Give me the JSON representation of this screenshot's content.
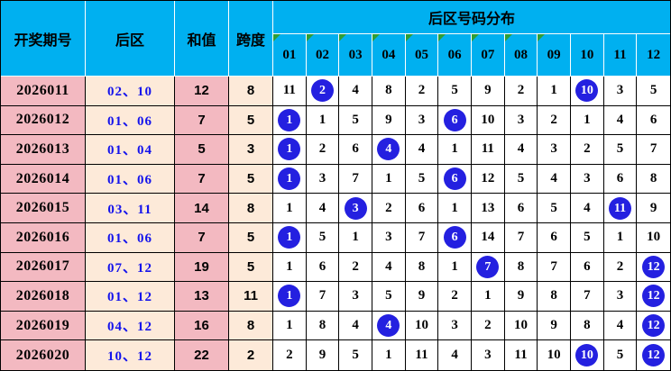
{
  "chart_data": {
    "type": "table",
    "title": "后区号码分布",
    "header": {
      "period": "开奖期号",
      "rear": "后区",
      "sum": "和值",
      "span": "跨度",
      "dist_title": "后区号码分布",
      "dist_columns": [
        "01",
        "02",
        "03",
        "04",
        "05",
        "06",
        "07",
        "08",
        "09",
        "10",
        "11",
        "12"
      ],
      "marked_columns": [
        "01",
        "02",
        "03",
        "04",
        "05",
        "06",
        "07",
        "08",
        "09"
      ]
    },
    "rows": [
      {
        "period": "2026011",
        "rear": "02、10",
        "sum": "12",
        "span": "8",
        "values": [
          11,
          2,
          4,
          8,
          2,
          5,
          9,
          2,
          1,
          10,
          3,
          5
        ],
        "hit_numbers": [
          2,
          10
        ]
      },
      {
        "period": "2026012",
        "rear": "01、06",
        "sum": "7",
        "span": "5",
        "values": [
          1,
          1,
          5,
          9,
          3,
          6,
          10,
          3,
          2,
          1,
          4,
          6
        ],
        "hit_numbers": [
          1,
          6
        ]
      },
      {
        "period": "2026013",
        "rear": "01、04",
        "sum": "5",
        "span": "3",
        "values": [
          1,
          2,
          6,
          4,
          4,
          1,
          11,
          4,
          3,
          2,
          5,
          7
        ],
        "hit_numbers": [
          1,
          4
        ]
      },
      {
        "period": "2026014",
        "rear": "01、06",
        "sum": "7",
        "span": "5",
        "values": [
          1,
          3,
          7,
          1,
          5,
          6,
          12,
          5,
          4,
          3,
          6,
          8
        ],
        "hit_numbers": [
          1,
          6
        ]
      },
      {
        "period": "2026015",
        "rear": "03、11",
        "sum": "14",
        "span": "8",
        "values": [
          1,
          4,
          3,
          2,
          6,
          1,
          13,
          6,
          5,
          4,
          11,
          9
        ],
        "hit_numbers": [
          3,
          11
        ]
      },
      {
        "period": "2026016",
        "rear": "01、06",
        "sum": "7",
        "span": "5",
        "values": [
          1,
          5,
          1,
          3,
          7,
          6,
          14,
          7,
          6,
          5,
          1,
          10
        ],
        "hit_numbers": [
          1,
          6
        ]
      },
      {
        "period": "2026017",
        "rear": "07、12",
        "sum": "19",
        "span": "5",
        "values": [
          1,
          6,
          2,
          4,
          8,
          1,
          7,
          8,
          7,
          6,
          2,
          12
        ],
        "hit_numbers": [
          7,
          12
        ]
      },
      {
        "period": "2026018",
        "rear": "01、12",
        "sum": "13",
        "span": "11",
        "values": [
          1,
          7,
          3,
          5,
          9,
          2,
          1,
          9,
          8,
          7,
          3,
          12
        ],
        "hit_numbers": [
          1,
          12
        ]
      },
      {
        "period": "2026019",
        "rear": "04、12",
        "sum": "16",
        "span": "8",
        "values": [
          1,
          8,
          4,
          4,
          10,
          3,
          2,
          10,
          9,
          8,
          4,
          12
        ],
        "hit_numbers": [
          4,
          12
        ]
      },
      {
        "period": "2026020",
        "rear": "10、12",
        "sum": "22",
        "span": "2",
        "values": [
          2,
          9,
          5,
          1,
          11,
          4,
          3,
          11,
          10,
          10,
          5,
          12
        ],
        "hit_numbers": [
          10,
          12
        ]
      }
    ]
  },
  "colors": {
    "header_bg": "#00b0f0",
    "row_pink": "#f3b9c1",
    "row_cream": "#fdead9",
    "hit_circle_blue": "#2420e0",
    "rear_text_blue": "#1413ec",
    "corner_marker_green": "#2e9e36",
    "grid_line": "#000000"
  }
}
